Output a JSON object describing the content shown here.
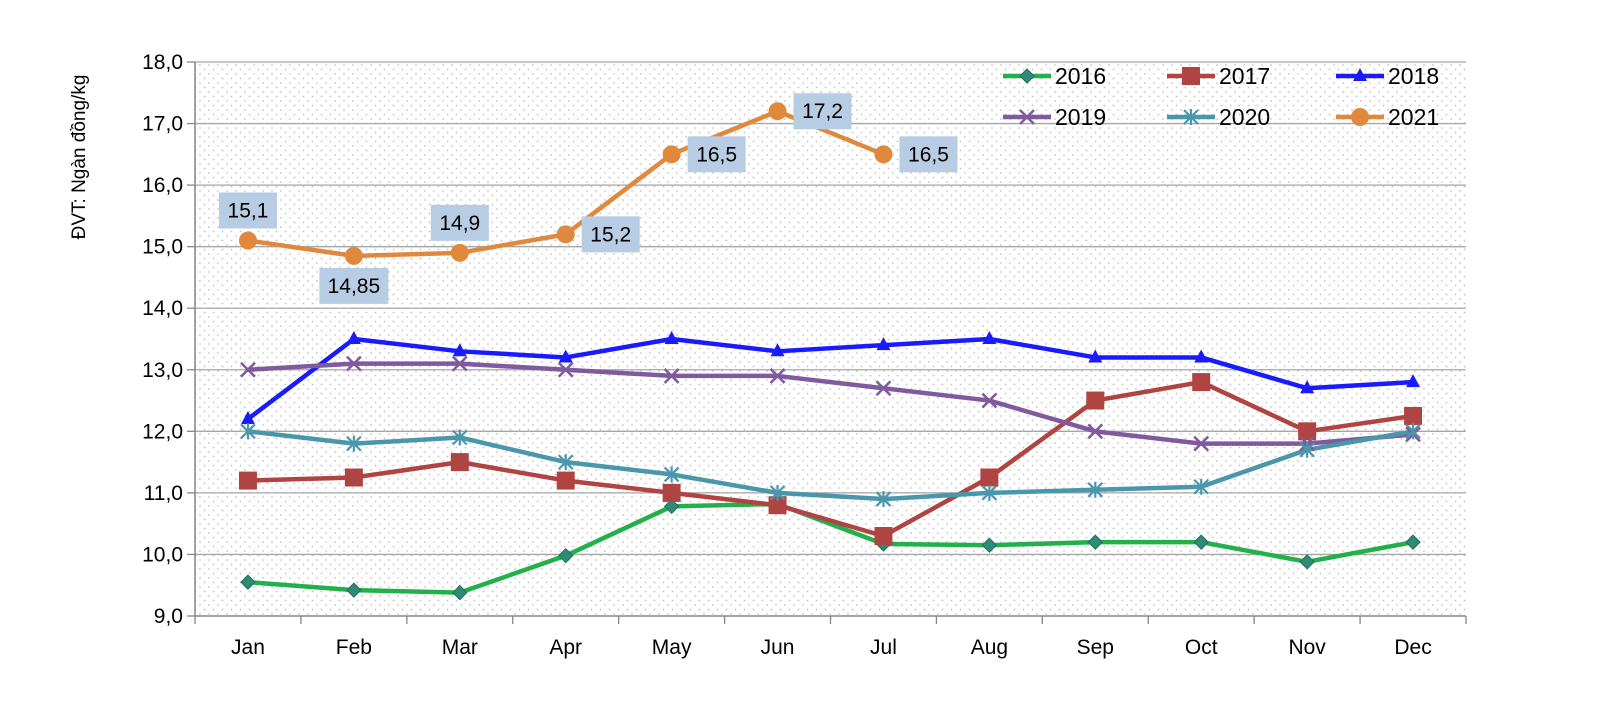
{
  "chart_data": {
    "type": "line",
    "title": "",
    "xlabel": "",
    "ylabel": "ĐVT: Ngàn đồng/kg",
    "ylim": [
      9.0,
      18.0
    ],
    "y_ticks": [
      "9,0",
      "10,0",
      "11,0",
      "12,0",
      "13,0",
      "14,0",
      "15,0",
      "16,0",
      "17,0",
      "18,0"
    ],
    "y_tick_values": [
      9,
      10,
      11,
      12,
      13,
      14,
      15,
      16,
      17,
      18
    ],
    "categories": [
      "Jan",
      "Feb",
      "Mar",
      "Apr",
      "May",
      "Jun",
      "Jul",
      "Aug",
      "Sep",
      "Oct",
      "Nov",
      "Dec"
    ],
    "grid": true,
    "legend_position": "top-right",
    "series": [
      {
        "name": "2016",
        "color": "#22b04b",
        "marker": "diamond",
        "marker_color": "#2e8b75",
        "values": [
          9.55,
          9.42,
          9.38,
          9.98,
          10.78,
          10.82,
          10.17,
          10.15,
          10.2,
          10.2,
          9.88,
          10.2
        ]
      },
      {
        "name": "2017",
        "color": "#b04442",
        "marker": "square",
        "marker_color": "#b04442",
        "values": [
          11.2,
          11.25,
          11.5,
          11.2,
          11.0,
          10.8,
          10.3,
          11.25,
          12.5,
          12.8,
          12.0,
          12.25
        ]
      },
      {
        "name": "2018",
        "color": "#1a1aff",
        "marker": "triangle",
        "marker_color": "#1a1aff",
        "values": [
          12.2,
          13.5,
          13.3,
          13.2,
          13.5,
          13.3,
          13.4,
          13.5,
          13.2,
          13.2,
          12.7,
          12.8
        ]
      },
      {
        "name": "2019",
        "color": "#7f5a9e",
        "marker": "x",
        "marker_color": "#7f5a9e",
        "values": [
          13.0,
          13.1,
          13.1,
          13.0,
          12.9,
          12.9,
          12.7,
          12.5,
          12.0,
          11.8,
          11.8,
          11.95
        ]
      },
      {
        "name": "2020",
        "color": "#4a96ab",
        "marker": "star",
        "marker_color": "#4a96ab",
        "values": [
          12.0,
          11.8,
          11.9,
          11.5,
          11.3,
          11.0,
          10.9,
          11.0,
          11.05,
          11.1,
          11.7,
          12.0
        ]
      },
      {
        "name": "2021",
        "color": "#e0893c",
        "marker": "circle",
        "marker_color": "#e0893c",
        "values": [
          15.1,
          14.85,
          14.9,
          15.2,
          16.5,
          17.2,
          16.5,
          null,
          null,
          null,
          null,
          null
        ]
      }
    ],
    "data_labels": [
      {
        "series": "2021",
        "index": 0,
        "text": "15,1",
        "placement": "above"
      },
      {
        "series": "2021",
        "index": 1,
        "text": "14,85",
        "placement": "below"
      },
      {
        "series": "2021",
        "index": 2,
        "text": "14,9",
        "placement": "above"
      },
      {
        "series": "2021",
        "index": 3,
        "text": "15,2",
        "placement": "right"
      },
      {
        "series": "2021",
        "index": 4,
        "text": "16,5",
        "placement": "right"
      },
      {
        "series": "2021",
        "index": 5,
        "text": "17,2",
        "placement": "right"
      },
      {
        "series": "2021",
        "index": 6,
        "text": "16,5",
        "placement": "right"
      }
    ],
    "colors": {
      "grid": "#a6a6a6",
      "axis": "#868686",
      "dots": "#c8c8c8",
      "label_box": "#b8cce4"
    }
  }
}
